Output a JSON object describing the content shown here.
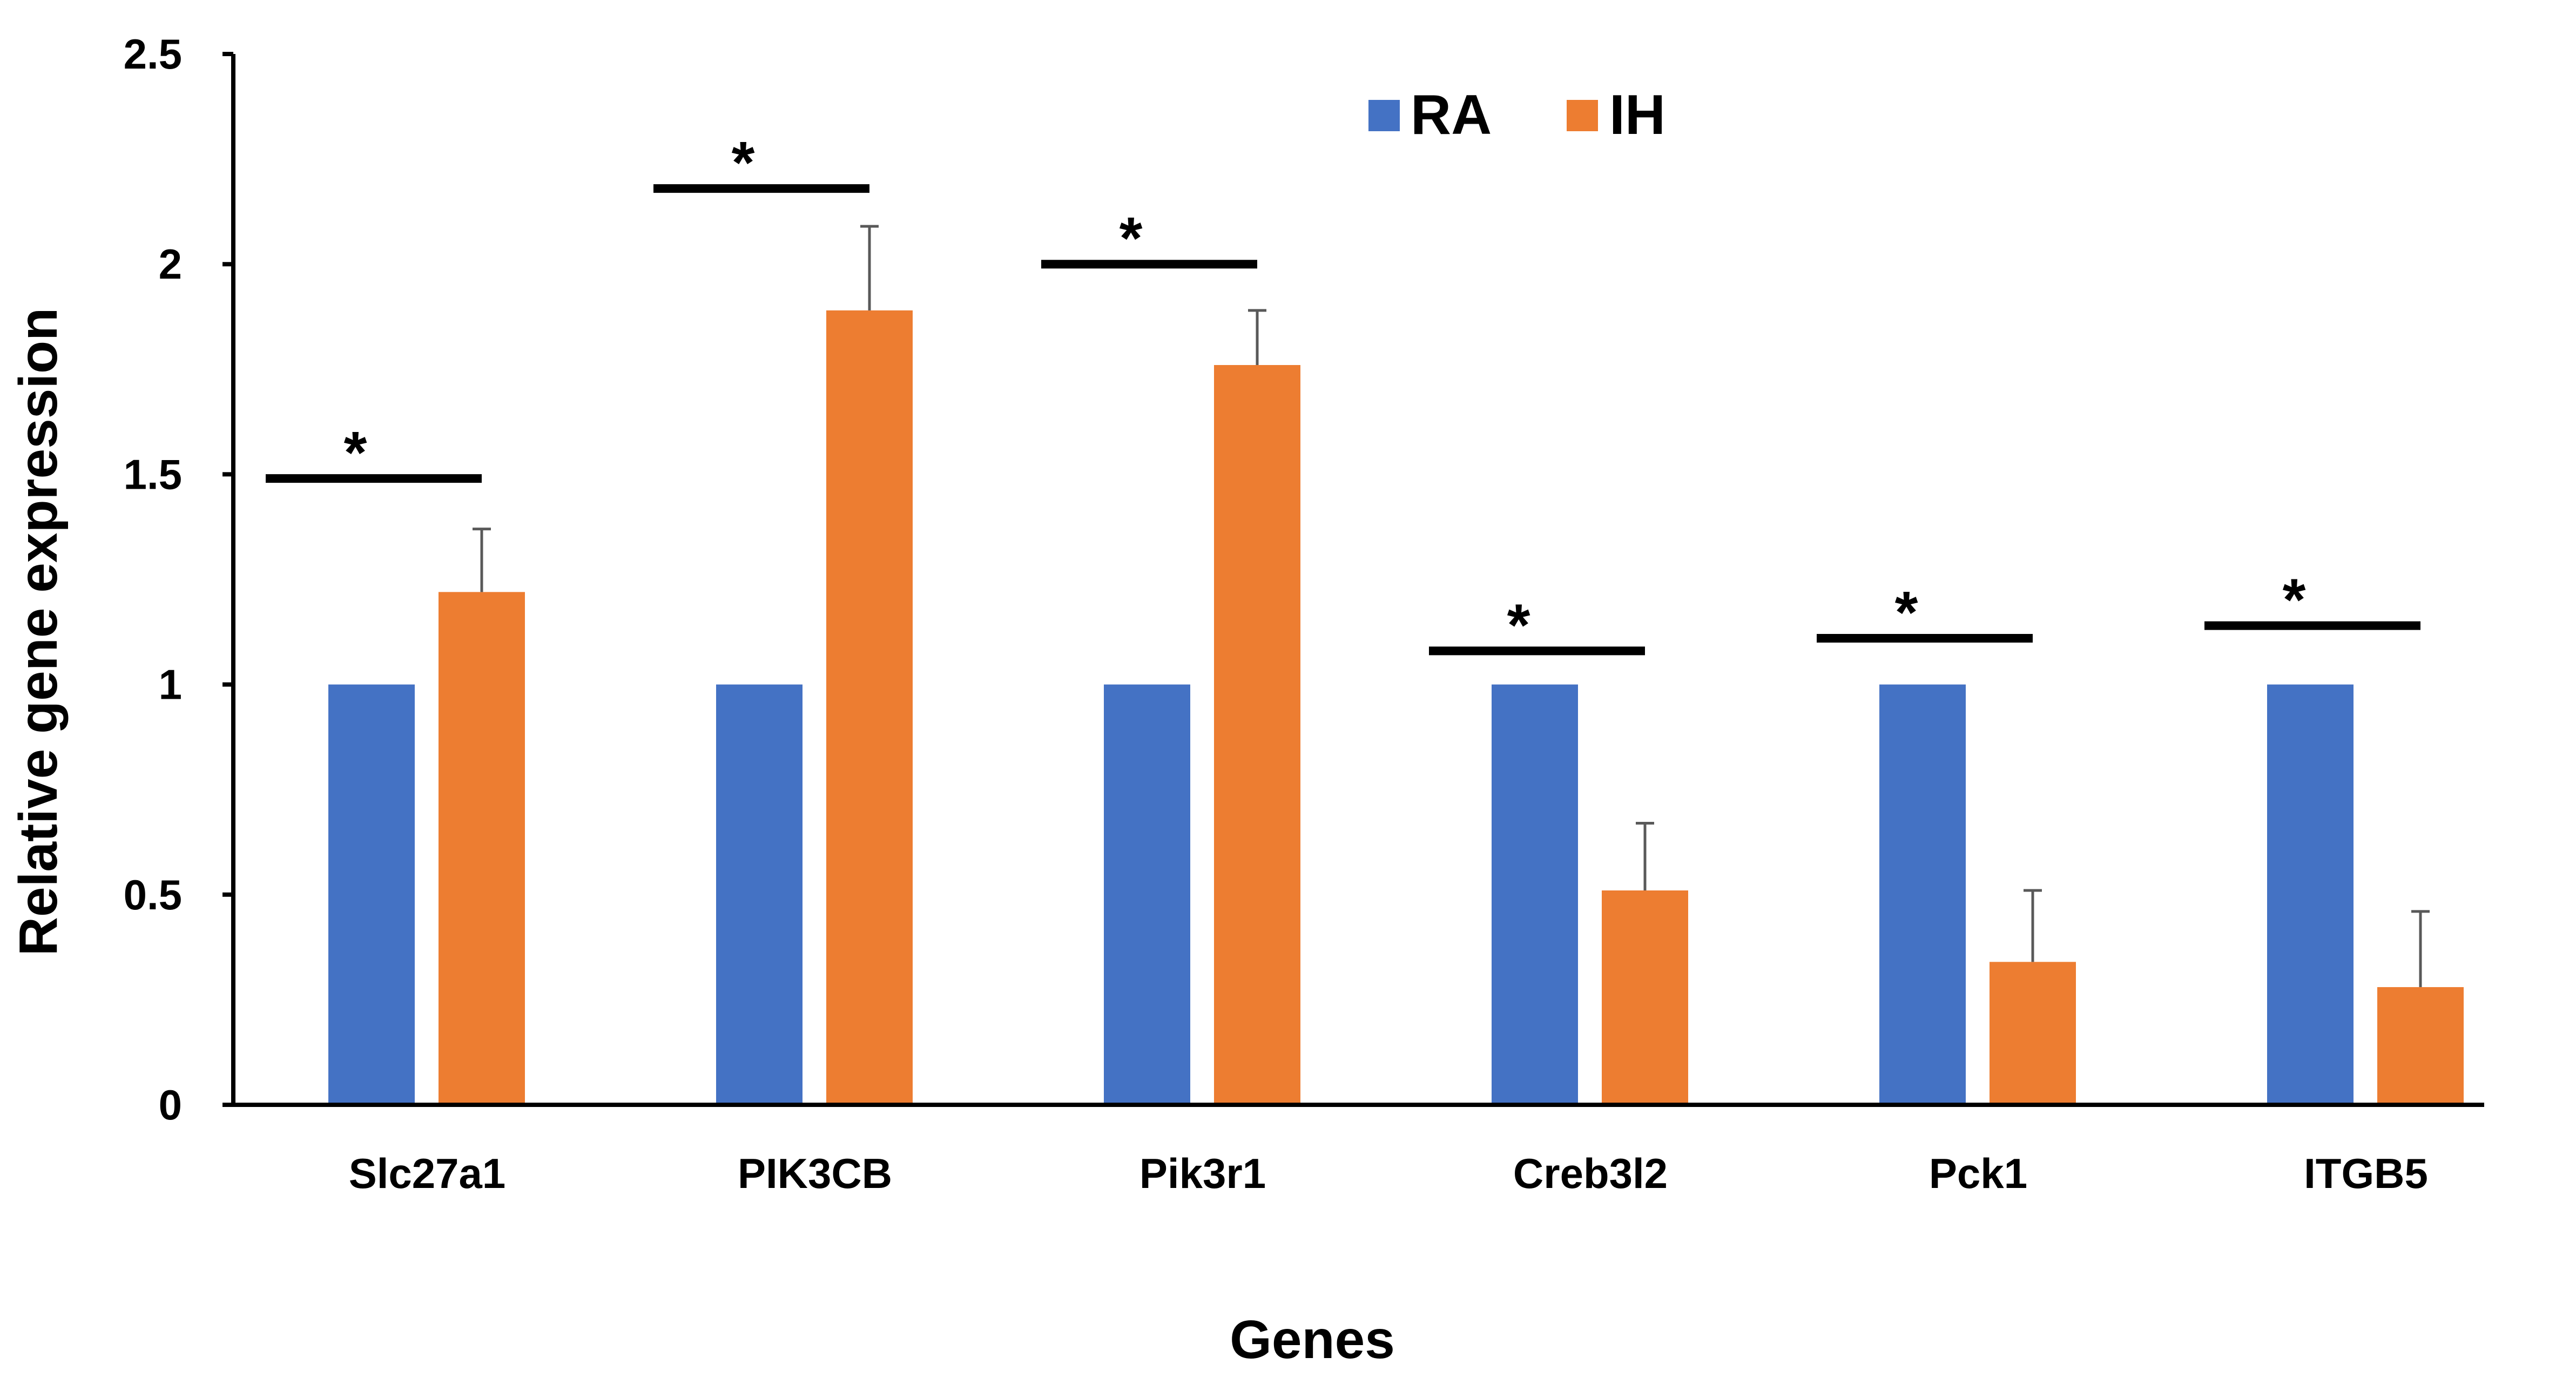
{
  "chart_data": {
    "type": "bar",
    "title": "",
    "xlabel": "Genes",
    "ylabel": "Relative gene expression",
    "ylim": [
      0,
      2.5
    ],
    "yticks": [
      0,
      0.5,
      1,
      1.5,
      2,
      2.5
    ],
    "ytick_labels": [
      "0",
      "0.5",
      "1",
      "1.5",
      "2",
      "2.5"
    ],
    "categories": [
      "Slc27a1",
      "PIK3CB",
      "Pik3r1",
      "Creb3l2",
      "Pck1",
      "ITGB5"
    ],
    "series": [
      {
        "name": "RA",
        "color": "#4472C4",
        "values": [
          1,
          1,
          1,
          1,
          1,
          1
        ],
        "errors": [
          0,
          0,
          0,
          0,
          0,
          0
        ]
      },
      {
        "name": "IH",
        "color": "#ED7D31",
        "values": [
          1.22,
          1.89,
          1.76,
          0.51,
          0.34,
          0.28
        ],
        "errors": [
          0.15,
          0.2,
          0.13,
          0.16,
          0.17,
          0.18
        ]
      }
    ],
    "significance": [
      {
        "category": "Slc27a1",
        "marker": "*",
        "bar_level": 1.49
      },
      {
        "category": "PIK3CB",
        "marker": "*",
        "bar_level": 2.18
      },
      {
        "category": "Pik3r1",
        "marker": "*",
        "bar_level": 2.0
      },
      {
        "category": "Creb3l2",
        "marker": "*",
        "bar_level": 1.08
      },
      {
        "category": "Pck1",
        "marker": "*",
        "bar_level": 1.11
      },
      {
        "category": "ITGB5",
        "marker": "*",
        "bar_level": 1.14
      }
    ],
    "legend_position": "top-center",
    "grid": false
  }
}
